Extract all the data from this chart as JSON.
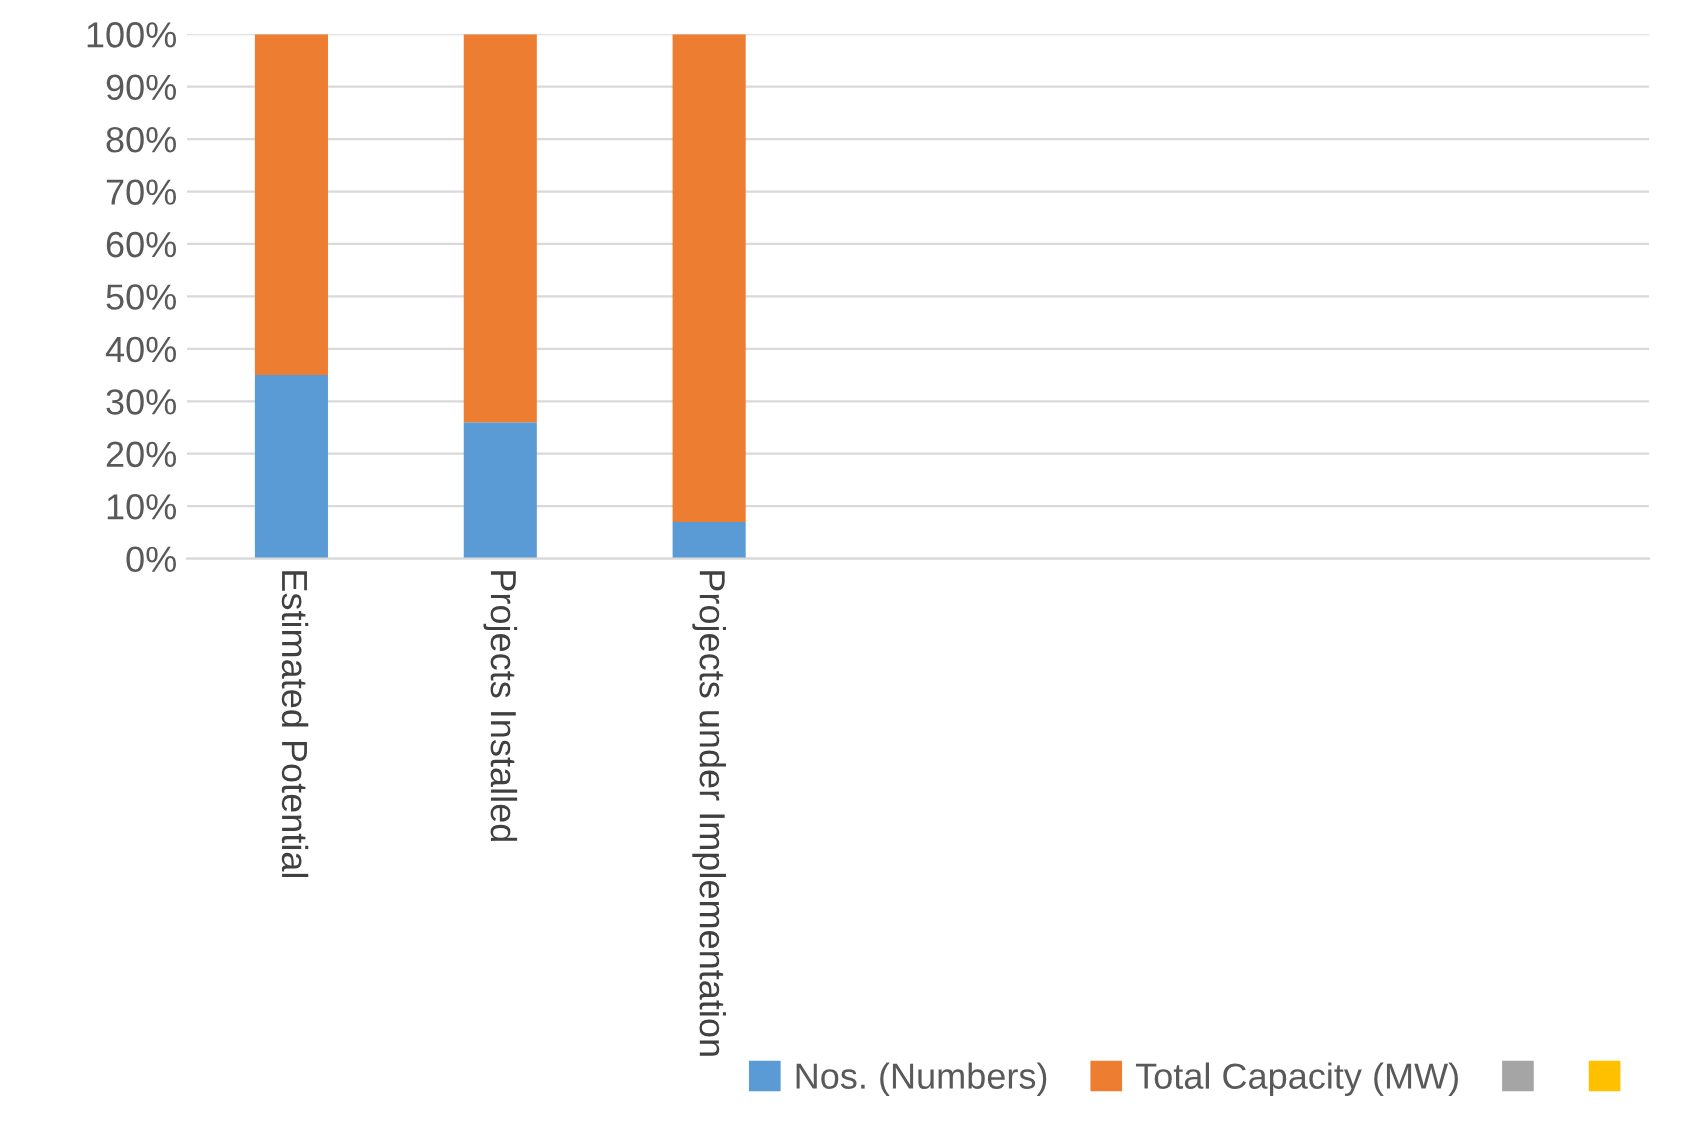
{
  "chart_data": {
    "type": "bar",
    "stacked": true,
    "categories": [
      "Estimated Potential",
      "Projects Installed",
      "Projects under Implementation",
      null,
      null,
      null,
      null
    ],
    "series": [
      {
        "name": "Nos. (Numbers)",
        "color": "#5b9bd5",
        "values": [
          35,
          26,
          7,
          null,
          null,
          null,
          null
        ]
      },
      {
        "name": "Total Capacity (MW)",
        "color": "#ed7d31",
        "values": [
          65,
          74,
          93,
          null,
          null,
          null,
          null
        ]
      },
      {
        "color": "#a5a5a5",
        "values": [
          null,
          null,
          null,
          null,
          null,
          null,
          null
        ]
      },
      {
        "color": "#ffc000",
        "values": [
          null,
          null,
          null,
          null,
          null,
          null,
          null
        ]
      }
    ],
    "ylim": [
      0,
      100
    ],
    "yticks": [
      {
        "value": 0,
        "label": "0%"
      },
      {
        "value": 10,
        "label": "10%"
      },
      {
        "value": 20,
        "label": "20%"
      },
      {
        "value": 30,
        "label": "30%"
      },
      {
        "value": 40,
        "label": "40%"
      },
      {
        "value": 50,
        "label": "50%"
      },
      {
        "value": 60,
        "label": "60%"
      },
      {
        "value": 70,
        "label": "70%"
      },
      {
        "value": 80,
        "label": "80%"
      },
      {
        "value": 90,
        "label": "90%"
      },
      {
        "value": 100,
        "label": "100%"
      }
    ],
    "grid": "y",
    "legend": "bottom right"
  }
}
